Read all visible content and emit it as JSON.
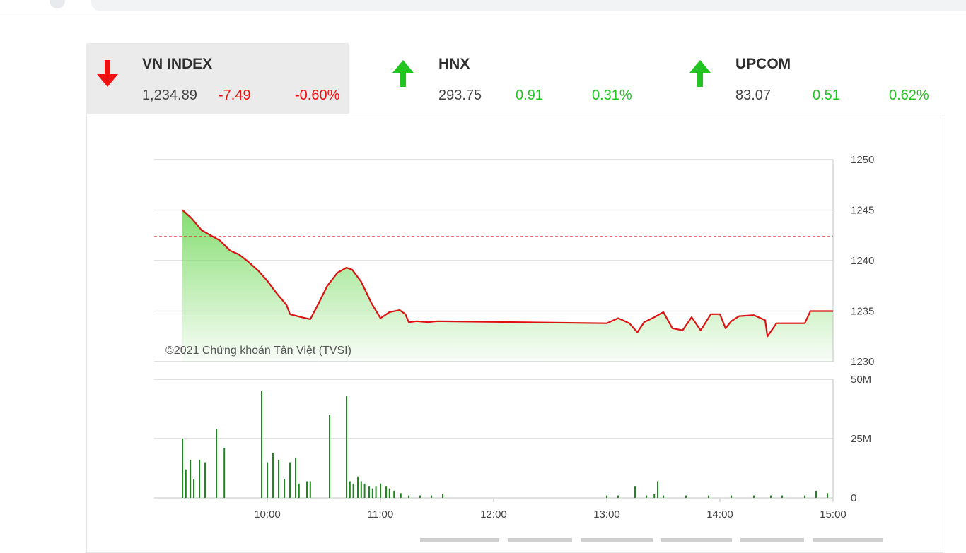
{
  "tabs": [
    {
      "name": "VN INDEX",
      "value": "1,234.89",
      "change": "-7.49",
      "percent": "-0.60%",
      "direction": "down",
      "active": true
    },
    {
      "name": "HNX",
      "value": "293.75",
      "change": "0.91",
      "percent": "0.31%",
      "direction": "up",
      "active": false
    },
    {
      "name": "UPCOM",
      "value": "83.07",
      "change": "0.51",
      "percent": "0.62%",
      "direction": "up",
      "active": false
    }
  ],
  "colors": {
    "up": "#22c422",
    "down": "#ee1111",
    "line": "#dd1111",
    "reference": "#dd2222",
    "volume": "#1e8a1e",
    "area": "#7fdc6a",
    "grid": "#d0d0d0",
    "axis_text": "#444444"
  },
  "watermark": "©2021 Chứng khoán Tân Việt (TVSI)",
  "chart_data": [
    {
      "type": "area",
      "series": [
        {
          "values": [
            [
              9.25,
              1245.0
            ],
            [
              9.33,
              1244.2
            ],
            [
              9.42,
              1243.0
            ],
            [
              9.5,
              1242.5
            ],
            [
              9.58,
              1242.0
            ],
            [
              9.67,
              1241.0
            ],
            [
              9.75,
              1240.6
            ],
            [
              9.83,
              1239.9
            ],
            [
              9.92,
              1239.0
            ],
            [
              10.0,
              1238.0
            ],
            [
              10.08,
              1236.8
            ],
            [
              10.17,
              1235.6
            ],
            [
              10.2,
              1234.7
            ],
            [
              10.3,
              1234.4
            ],
            [
              10.38,
              1234.2
            ],
            [
              10.45,
              1235.7
            ],
            [
              10.53,
              1237.5
            ],
            [
              10.62,
              1238.8
            ],
            [
              10.7,
              1239.3
            ],
            [
              10.75,
              1239.1
            ],
            [
              10.83,
              1237.9
            ],
            [
              10.92,
              1235.8
            ],
            [
              11.0,
              1234.3
            ],
            [
              11.08,
              1234.9
            ],
            [
              11.17,
              1235.1
            ],
            [
              11.22,
              1234.7
            ],
            [
              11.25,
              1233.9
            ],
            [
              11.32,
              1234.0
            ],
            [
              11.42,
              1233.9
            ],
            [
              11.5,
              1234.0
            ],
            [
              13.0,
              1233.8
            ],
            [
              13.1,
              1234.3
            ],
            [
              13.2,
              1233.8
            ],
            [
              13.27,
              1232.9
            ],
            [
              13.33,
              1233.9
            ],
            [
              13.42,
              1234.4
            ],
            [
              13.5,
              1234.9
            ],
            [
              13.58,
              1233.3
            ],
            [
              13.67,
              1233.1
            ],
            [
              13.75,
              1234.4
            ],
            [
              13.83,
              1233.1
            ],
            [
              13.92,
              1234.7
            ],
            [
              14.0,
              1234.7
            ],
            [
              14.05,
              1233.3
            ],
            [
              14.1,
              1234.0
            ],
            [
              14.17,
              1234.5
            ],
            [
              14.3,
              1234.6
            ],
            [
              14.4,
              1234.1
            ],
            [
              14.42,
              1232.5
            ],
            [
              14.5,
              1233.8
            ],
            [
              14.75,
              1233.8
            ],
            [
              14.8,
              1235.0
            ],
            [
              15.0,
              1235.0
            ]
          ]
        }
      ],
      "reference": 1242.38,
      "ylim": [
        1230,
        1250
      ],
      "yticks": [
        "1250",
        "1245",
        "1240",
        "1235",
        "1230"
      ],
      "xlim": [
        9.0,
        15.0
      ]
    },
    {
      "type": "bar",
      "series": [
        {
          "values": [
            [
              9.25,
              25
            ],
            [
              9.28,
              12
            ],
            [
              9.32,
              16
            ],
            [
              9.35,
              8
            ],
            [
              9.4,
              16
            ],
            [
              9.45,
              15
            ],
            [
              9.55,
              29
            ],
            [
              9.62,
              21
            ],
            [
              9.95,
              45
            ],
            [
              10.0,
              15
            ],
            [
              10.05,
              19
            ],
            [
              10.1,
              16
            ],
            [
              10.15,
              8
            ],
            [
              10.2,
              15
            ],
            [
              10.25,
              17
            ],
            [
              10.28,
              6
            ],
            [
              10.35,
              7
            ],
            [
              10.38,
              7
            ],
            [
              10.55,
              35
            ],
            [
              10.7,
              43
            ],
            [
              10.73,
              7
            ],
            [
              10.76,
              6
            ],
            [
              10.8,
              9
            ],
            [
              10.83,
              7
            ],
            [
              10.86,
              6
            ],
            [
              10.9,
              5
            ],
            [
              10.93,
              4
            ],
            [
              10.96,
              5
            ],
            [
              11.0,
              6
            ],
            [
              11.05,
              5
            ],
            [
              11.08,
              4
            ],
            [
              11.12,
              3
            ],
            [
              11.18,
              2
            ],
            [
              11.25,
              1
            ],
            [
              11.35,
              1
            ],
            [
              11.45,
              1
            ],
            [
              11.55,
              1.5
            ],
            [
              13.0,
              1
            ],
            [
              13.1,
              1
            ],
            [
              13.25,
              5
            ],
            [
              13.35,
              1
            ],
            [
              13.42,
              1.5
            ],
            [
              13.45,
              7
            ],
            [
              13.5,
              1
            ],
            [
              13.7,
              1
            ],
            [
              13.9,
              1
            ],
            [
              14.1,
              1
            ],
            [
              14.3,
              1
            ],
            [
              14.45,
              1
            ],
            [
              14.55,
              1
            ],
            [
              14.75,
              1
            ],
            [
              14.85,
              3
            ],
            [
              14.95,
              2
            ]
          ]
        }
      ],
      "ylim": [
        0,
        50
      ],
      "yticks": [
        "50M",
        "25M",
        "0"
      ],
      "xticks": [
        "10:00",
        "11:00",
        "12:00",
        "13:00",
        "14:00",
        "15:00"
      ]
    }
  ]
}
